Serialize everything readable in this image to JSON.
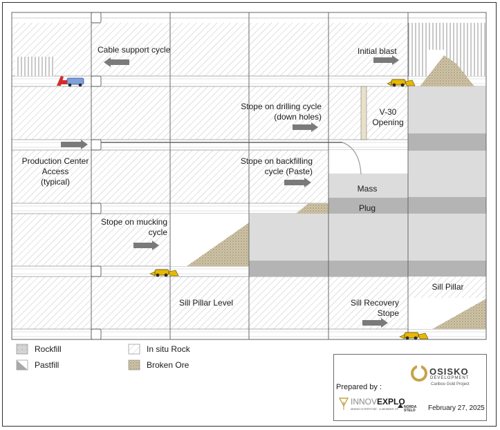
{
  "labels": {
    "cable_support_cycle": "Cable support cycle",
    "initial_blast": "Initial blast",
    "stope_drilling_1": "Stope on drilling cycle",
    "stope_drilling_2": "(down holes)",
    "v30_1": "V-30",
    "v30_2": "Opening",
    "production_1": "Production Center",
    "production_2": "Access",
    "production_3": "(typical)",
    "stope_backfilling_1": "Stope on backfilling",
    "stope_backfilling_2": "cycle (Paste)",
    "mass": "Mass",
    "plug": "Plug",
    "stope_mucking_1": "Stope on mucking",
    "stope_mucking_2": "cycle",
    "sill_pillar_level": "Sill Pillar Level",
    "sill_recovery_1": "Sill Recovery",
    "sill_recovery_2": "Stope",
    "sill_pillar": "Sill Pillar"
  },
  "legend": {
    "rockfill": "Rockfill",
    "pastfill": "Pastfill",
    "in_situ_rock": "In situ Rock",
    "broken_ore": "Broken Ore"
  },
  "credits": {
    "prepared_by": "Prepared by :",
    "innov": "INNOV",
    "explo": "EXPLO",
    "innov_tagline": "MINING EXPERTISE · A MEMBER OF",
    "norda": "NORDA STELO",
    "osisko": "OSISKO",
    "development": "DEVELOPMENT",
    "project": "Cariboo Gold Project",
    "date": "February 27, 2025"
  },
  "colors": {
    "arrow": "#7a7a7a",
    "paste_fill": "#dcdcdc",
    "paste_band": "#b4b4b4",
    "broken_ore": "#c8bc9c",
    "equipment": "#e8b800",
    "osisko_accent": "#c8a24a"
  },
  "icons": [
    "arrow-right-icon",
    "arrow-left-icon",
    "loader-icon",
    "drill-rig-icon",
    "osisko-logo-icon",
    "innovexplo-logo-icon"
  ]
}
